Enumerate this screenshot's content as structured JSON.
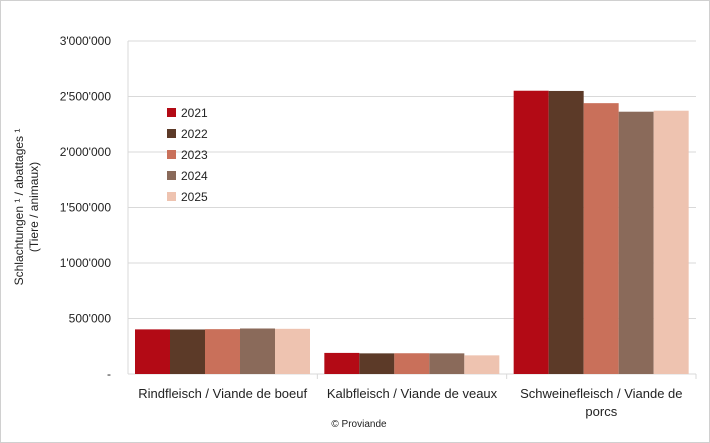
{
  "chart_data": {
    "type": "bar",
    "ylabel_line1": "Schlachtungen ¹ / abattages ¹",
    "ylabel_line2": "(Tiere / animaux)",
    "categories": [
      [
        "Rindfleisch / Viande de boeuf"
      ],
      [
        "Kalbfleisch / Viande de veaux"
      ],
      [
        "Schweinefleisch / Viande de",
        "porcs"
      ]
    ],
    "ylim": [
      0,
      3000000
    ],
    "yticks": [
      0,
      500000,
      1000000,
      1500000,
      2000000,
      2500000,
      3000000
    ],
    "ytick_labels": [
      "-",
      "500'000",
      "1'000'000",
      "1'500'000",
      "2'000'000",
      "2'500'000",
      "3'000'000"
    ],
    "grid": true,
    "legend_position": "top-left",
    "series": [
      {
        "name": "2021",
        "color": "#b30a15",
        "values": [
          402000,
          190000,
          2552000
        ]
      },
      {
        "name": "2022",
        "color": "#5c3a28",
        "values": [
          401000,
          186000,
          2550000
        ]
      },
      {
        "name": "2023",
        "color": "#c9705a",
        "values": [
          404000,
          187000,
          2440000
        ]
      },
      {
        "name": "2024",
        "color": "#8a6a5a",
        "values": [
          410000,
          186000,
          2363000
        ]
      },
      {
        "name": "2025",
        "color": "#eec3b0",
        "values": [
          407000,
          168000,
          2372000
        ]
      }
    ],
    "source": "© Proviande"
  }
}
